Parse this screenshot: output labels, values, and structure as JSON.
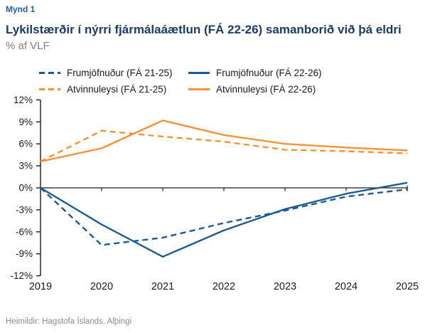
{
  "figure_label": "Mynd 1",
  "title": "Lykilstærðir í nýrri fjármálaáætlun (FÁ 22-26) samanborið við þá eldri",
  "subtitle": "% af VLF",
  "footer": "Heimildir: Hagstofa Íslands, Alþingi",
  "colors": {
    "blue": "#1C5A96",
    "orange": "#F79333",
    "figure_label": "#1F5FA6",
    "title": "#1C3A6B",
    "subtitle": "#808080",
    "footer": "#8C8C8C",
    "axis": "#1A1A1A"
  },
  "chart_data": {
    "type": "line",
    "x": [
      2019,
      2020,
      2021,
      2022,
      2023,
      2024,
      2025
    ],
    "series": [
      {
        "name": "Frumjöfnuður (FÁ 21-25)",
        "color_key": "blue",
        "dash": true,
        "values": [
          0.0,
          -7.8,
          -6.8,
          -4.8,
          -3.1,
          -1.2,
          -0.2
        ]
      },
      {
        "name": "Frumjöfnuður (FÁ 22-26)",
        "color_key": "blue",
        "dash": false,
        "values": [
          0.0,
          -5.0,
          -9.4,
          -5.8,
          -2.9,
          -0.8,
          0.7
        ]
      },
      {
        "name": "Atvinnuleysi (FÁ 21-25)",
        "color_key": "orange",
        "dash": true,
        "values": [
          3.6,
          7.8,
          7.0,
          6.3,
          5.2,
          5.0,
          4.7
        ]
      },
      {
        "name": "Atvinnuleysi (FÁ 22-26)",
        "color_key": "orange",
        "dash": false,
        "values": [
          3.6,
          5.4,
          9.2,
          7.2,
          6.0,
          5.5,
          5.1
        ]
      }
    ],
    "title": "Lykilstærðir í nýrri fjármálaáætlun (FÁ 22-26) samanborið við þá eldri",
    "xlabel": "",
    "ylabel": "% af VLF",
    "ylim": [
      -12,
      12
    ],
    "ytick_step": 3,
    "ytick_suffix": "%",
    "grid": false,
    "zero_axis_line": true,
    "legend_position": "top"
  }
}
